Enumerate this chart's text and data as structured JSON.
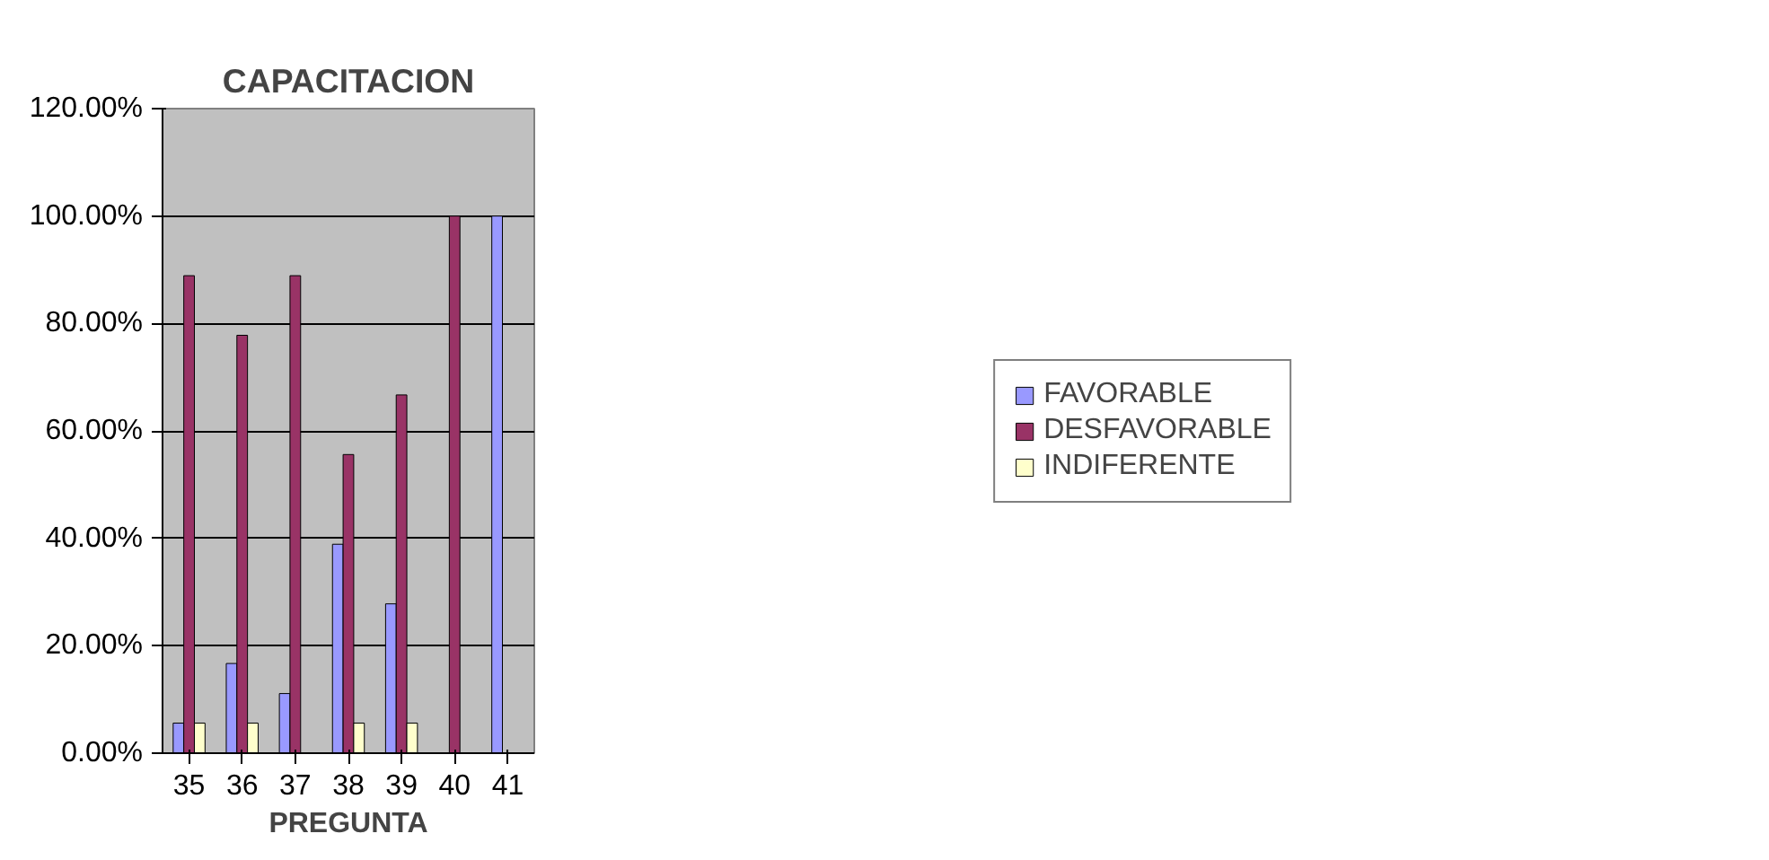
{
  "chart_data": {
    "type": "bar",
    "title": "CAPACITACION",
    "xlabel": "PREGUNTA",
    "categories": [
      "35",
      "36",
      "37",
      "38",
      "39",
      "40",
      "41"
    ],
    "series": [
      {
        "name": "FAVORABLE",
        "color": "#9999ff",
        "values": [
          5.6,
          16.7,
          11.1,
          38.9,
          27.8,
          0,
          100
        ]
      },
      {
        "name": "DESFAVORABLE",
        "color": "#993366",
        "values": [
          88.9,
          77.8,
          88.9,
          55.6,
          66.7,
          100,
          0
        ]
      },
      {
        "name": "INDIFERENTE",
        "color": "#ffffcc",
        "values": [
          5.6,
          5.6,
          0,
          5.6,
          5.6,
          0,
          0
        ]
      }
    ],
    "ylim": [
      0,
      120
    ],
    "yticks": [
      {
        "value": 0,
        "label": "0.00%"
      },
      {
        "value": 20,
        "label": "20.00%"
      },
      {
        "value": 40,
        "label": "40.00%"
      },
      {
        "value": 60,
        "label": "60.00%"
      },
      {
        "value": 80,
        "label": "80.00%"
      },
      {
        "value": 100,
        "label": "100.00%"
      },
      {
        "value": 120,
        "label": "120.00%"
      }
    ],
    "grid": "y",
    "legend": "right"
  }
}
